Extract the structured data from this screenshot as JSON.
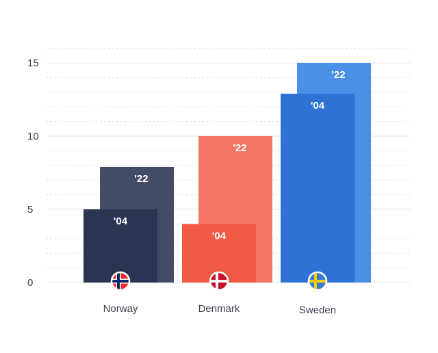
{
  "chart_data": {
    "type": "bar",
    "title": "",
    "xlabel": "",
    "ylabel": "",
    "ylim": [
      0,
      16
    ],
    "yticks": [
      0,
      5,
      10,
      15
    ],
    "grid": true,
    "categories": [
      "Norway",
      "Denmark",
      "Sweden"
    ],
    "series": [
      {
        "label": "'04",
        "values": [
          5,
          4,
          12.9
        ],
        "colors": [
          "#2b3452",
          "#f05a43",
          "#2f72d6"
        ]
      },
      {
        "label": "'22",
        "values": [
          7.9,
          10,
          15
        ],
        "colors": [
          "#434c66",
          "#f47766",
          "#4a90e6"
        ]
      }
    ],
    "flags": [
      {
        "name": "norway-flag-icon",
        "colors": [
          "#ef2b2d",
          "#ffffff",
          "#002868"
        ]
      },
      {
        "name": "denmark-flag-icon",
        "colors": [
          "#c8102e",
          "#ffffff",
          "#c8102e"
        ]
      },
      {
        "name": "sweden-flag-icon",
        "colors": [
          "#3a7dce",
          "#fecc00",
          "#3a7dce"
        ]
      }
    ]
  }
}
